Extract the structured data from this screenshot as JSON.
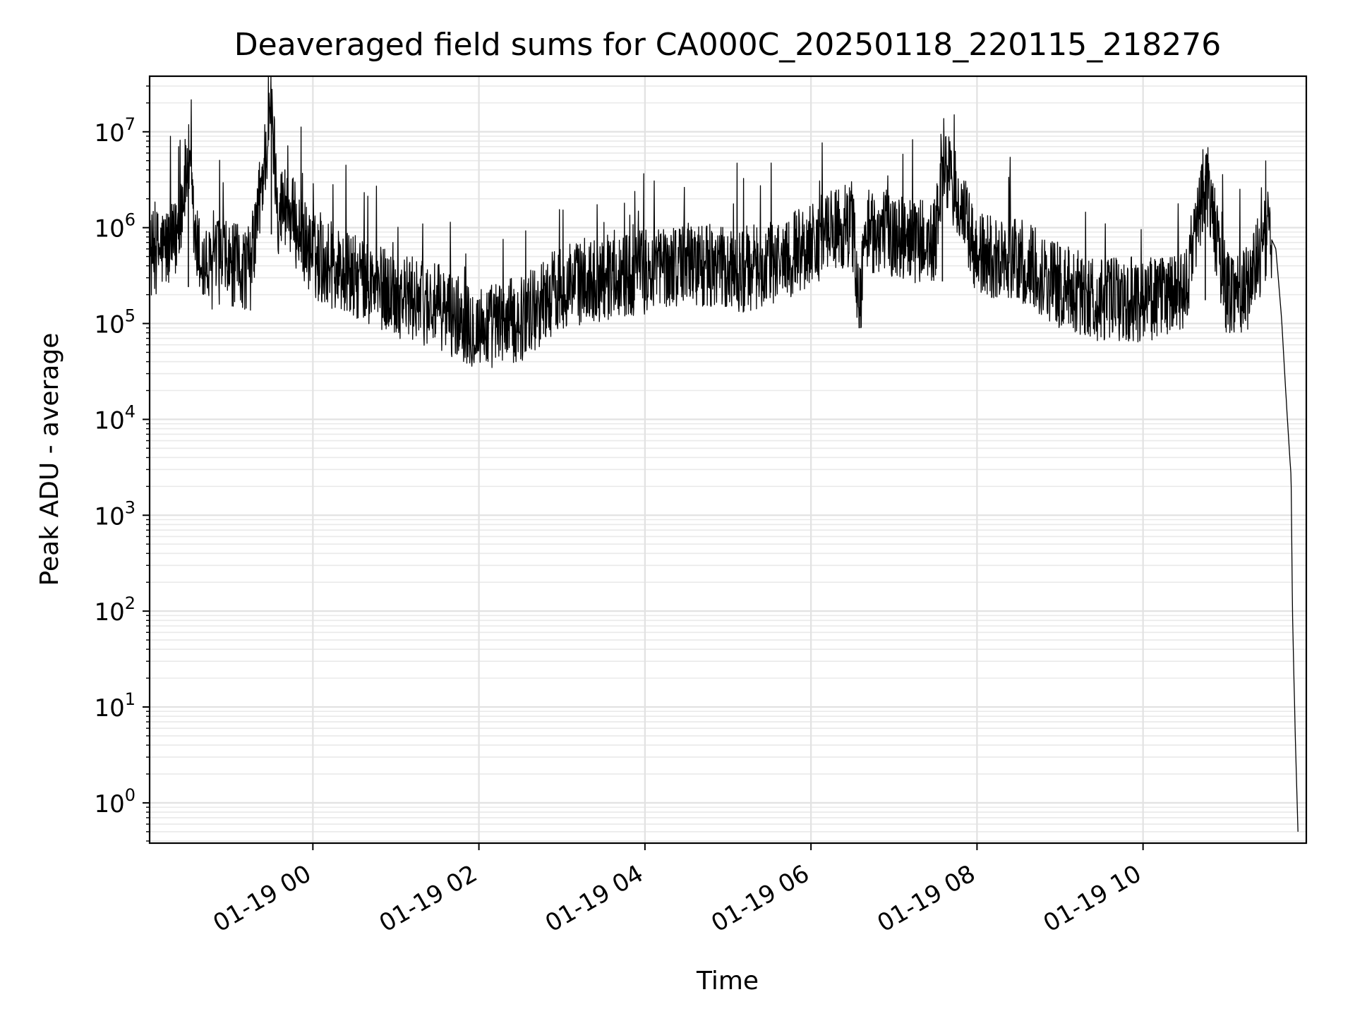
{
  "chart_data": {
    "type": "line",
    "title": "Deaveraged field sums for CA000C_20250118_220115_218276",
    "xlabel": "Time",
    "ylabel": "Peak ADU - average",
    "yscale": "log",
    "xlim": [
      "2025-01-18 22:02",
      "2025-01-19 11:58"
    ],
    "ylim": [
      0.38,
      38000000
    ],
    "grid": true,
    "x_ticks": [
      "01-19 00",
      "01-19 02",
      "01-19 04",
      "01-19 06",
      "01-19 08",
      "01-19 10"
    ],
    "y_ticks": [
      {
        "base": "10",
        "exp": "0"
      },
      {
        "base": "10",
        "exp": "1"
      },
      {
        "base": "10",
        "exp": "2"
      },
      {
        "base": "10",
        "exp": "3"
      },
      {
        "base": "10",
        "exp": "4"
      },
      {
        "base": "10",
        "exp": "5"
      },
      {
        "base": "10",
        "exp": "6"
      },
      {
        "base": "10",
        "exp": "7"
      }
    ],
    "series": [
      {
        "color": "#000000",
        "x": [
          "2025-01-18 22:02",
          "2025-01-18 22:10",
          "2025-01-18 22:20",
          "2025-01-18 22:30",
          "2025-01-18 22:35",
          "2025-01-18 22:40",
          "2025-01-18 22:45",
          "2025-01-18 22:52",
          "2025-01-18 23:00",
          "2025-01-18 23:15",
          "2025-01-18 23:30",
          "2025-01-18 23:35",
          "2025-01-18 23:40",
          "2025-01-18 23:50",
          "2025-01-19 00:00",
          "2025-01-19 00:30",
          "2025-01-19 01:00",
          "2025-01-19 01:30",
          "2025-01-19 02:00",
          "2025-01-19 02:30",
          "2025-01-19 03:00",
          "2025-01-19 03:30",
          "2025-01-19 04:00",
          "2025-01-19 04:30",
          "2025-01-19 05:00",
          "2025-01-19 05:30",
          "2025-01-19 06:00",
          "2025-01-19 06:15",
          "2025-01-19 06:30",
          "2025-01-19 06:35",
          "2025-01-19 06:40",
          "2025-01-19 07:00",
          "2025-01-19 07:30",
          "2025-01-19 07:35",
          "2025-01-19 08:00",
          "2025-01-19 08:30",
          "2025-01-19 09:00",
          "2025-01-19 09:30",
          "2025-01-19 10:00",
          "2025-01-19 10:30",
          "2025-01-19 10:45",
          "2025-01-19 11:00",
          "2025-01-19 11:15",
          "2025-01-19 11:30",
          "2025-01-19 11:33",
          "2025-01-19 11:36",
          "2025-01-19 11:40",
          "2025-01-19 11:44",
          "2025-01-19 11:47",
          "2025-01-19 11:48",
          "2025-01-19 11:50",
          "2025-01-19 11:52"
        ],
        "y": [
          500000,
          600000,
          650000,
          4800000,
          700000,
          400000,
          350000,
          450000,
          400000,
          380000,
          17000000,
          1500000,
          1800000,
          900000,
          500000,
          300000,
          200000,
          150000,
          90000,
          110000,
          250000,
          300000,
          350000,
          450000,
          350000,
          400000,
          700000,
          900000,
          1100000,
          150000,
          950000,
          850000,
          650000,
          5500000,
          500000,
          450000,
          250000,
          170000,
          180000,
          200000,
          3500000,
          220000,
          230000,
          850000,
          750000,
          600000,
          120000,
          12000,
          2500,
          100,
          5,
          0.5
        ]
      }
    ]
  }
}
